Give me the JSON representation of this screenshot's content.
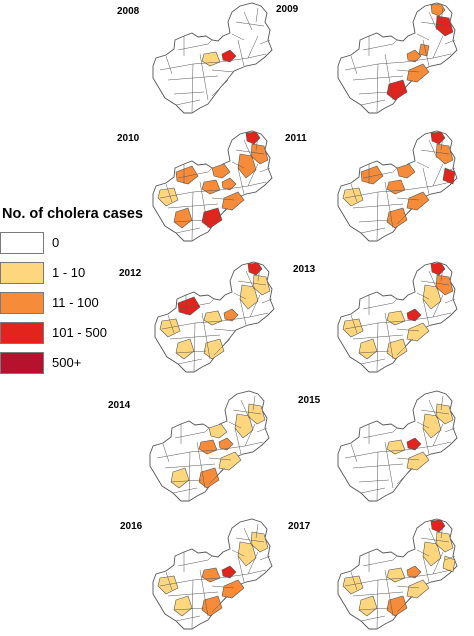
{
  "colors": {
    "c0": "#ffffff",
    "c1": "#fdd67e",
    "c2": "#f68c3a",
    "c3": "#e3241d",
    "c4": "#b6122e",
    "outline": "#555555"
  },
  "legend": {
    "title": "No. of cholera cases",
    "items": [
      {
        "label": "0",
        "color_key": "c0"
      },
      {
        "label": "1 - 10",
        "color_key": "c1"
      },
      {
        "label": "11 - 100",
        "color_key": "c2"
      },
      {
        "label": "101 - 500",
        "color_key": "c3"
      },
      {
        "label": "500+",
        "color_key": "c4"
      }
    ]
  },
  "maps": [
    {
      "year": "2008",
      "districts": [
        {
          "id": "lusaka",
          "level": "c3"
        },
        {
          "id": "central-w",
          "level": "c1"
        }
      ]
    },
    {
      "year": "2009",
      "districts": [
        {
          "id": "north-tip",
          "level": "c2"
        },
        {
          "id": "north-east",
          "level": "c3"
        },
        {
          "id": "lusaka",
          "level": "c2"
        },
        {
          "id": "luapula-s",
          "level": "c2"
        },
        {
          "id": "south-corridor",
          "level": "c2"
        },
        {
          "id": "southern",
          "level": "c3"
        }
      ]
    },
    {
      "year": "2010",
      "districts": [
        {
          "id": "north-tip",
          "level": "c3"
        },
        {
          "id": "north-east",
          "level": "c2"
        },
        {
          "id": "muchinga",
          "level": "c2"
        },
        {
          "id": "copperbelt",
          "level": "c2"
        },
        {
          "id": "central-w",
          "level": "c2"
        },
        {
          "id": "west",
          "level": "c1"
        },
        {
          "id": "north-west",
          "level": "c2"
        },
        {
          "id": "southern",
          "level": "c3"
        },
        {
          "id": "south-corridor",
          "level": "c2"
        },
        {
          "id": "lusaka",
          "level": "c2"
        },
        {
          "id": "south-west",
          "level": "c2"
        }
      ]
    },
    {
      "year": "2011",
      "districts": [
        {
          "id": "north-tip",
          "level": "c3"
        },
        {
          "id": "north-east",
          "level": "c2"
        },
        {
          "id": "east-strip",
          "level": "c3"
        },
        {
          "id": "copperbelt",
          "level": "c2"
        },
        {
          "id": "central-w",
          "level": "c2"
        },
        {
          "id": "north-west",
          "level": "c2"
        },
        {
          "id": "south-corridor",
          "level": "c2"
        },
        {
          "id": "west",
          "level": "c1"
        },
        {
          "id": "southern",
          "level": "c2"
        }
      ]
    },
    {
      "year": "2012",
      "districts": [
        {
          "id": "north-tip",
          "level": "c3"
        },
        {
          "id": "north-east",
          "level": "c1"
        },
        {
          "id": "north-west",
          "level": "c3"
        },
        {
          "id": "central-w",
          "level": "c1"
        },
        {
          "id": "lusaka",
          "level": "c2"
        },
        {
          "id": "west",
          "level": "c1"
        },
        {
          "id": "south-west",
          "level": "c1"
        },
        {
          "id": "southern",
          "level": "c1"
        },
        {
          "id": "muchinga",
          "level": "c1"
        }
      ]
    },
    {
      "year": "2013",
      "districts": [
        {
          "id": "north-tip",
          "level": "c3"
        },
        {
          "id": "north-east",
          "level": "c2"
        },
        {
          "id": "muchinga",
          "level": "c1"
        },
        {
          "id": "central-w",
          "level": "c1"
        },
        {
          "id": "lusaka",
          "level": "c3"
        },
        {
          "id": "west",
          "level": "c1"
        },
        {
          "id": "south-corridor",
          "level": "c1"
        },
        {
          "id": "southern",
          "level": "c1"
        },
        {
          "id": "south-west",
          "level": "c1"
        }
      ]
    },
    {
      "year": "2014",
      "districts": [
        {
          "id": "north-east",
          "level": "c1"
        },
        {
          "id": "central-w",
          "level": "c2"
        },
        {
          "id": "copperbelt",
          "level": "c1"
        },
        {
          "id": "muchinga",
          "level": "c1"
        },
        {
          "id": "southern",
          "level": "c2"
        },
        {
          "id": "south-west",
          "level": "c1"
        },
        {
          "id": "south-corridor",
          "level": "c1"
        },
        {
          "id": "lusaka",
          "level": "c2"
        }
      ]
    },
    {
      "year": "2015",
      "districts": [
        {
          "id": "north-east",
          "level": "c1"
        },
        {
          "id": "lusaka",
          "level": "c3"
        },
        {
          "id": "central-w",
          "level": "c1"
        },
        {
          "id": "south-corridor",
          "level": "c1"
        },
        {
          "id": "muchinga",
          "level": "c1"
        }
      ]
    },
    {
      "year": "2016",
      "districts": [
        {
          "id": "lusaka",
          "level": "c3"
        },
        {
          "id": "central-w",
          "level": "c2"
        },
        {
          "id": "north-east",
          "level": "c1"
        },
        {
          "id": "muchinga",
          "level": "c1"
        },
        {
          "id": "west",
          "level": "c1"
        },
        {
          "id": "south-corridor",
          "level": "c2"
        },
        {
          "id": "southern",
          "level": "c2"
        },
        {
          "id": "south-west",
          "level": "c1"
        }
      ]
    },
    {
      "year": "2017",
      "districts": [
        {
          "id": "north-tip",
          "level": "c3"
        },
        {
          "id": "north-east",
          "level": "c1"
        },
        {
          "id": "east-strip",
          "level": "c1"
        },
        {
          "id": "muchinga",
          "level": "c1"
        },
        {
          "id": "central-w",
          "level": "c1"
        },
        {
          "id": "lusaka",
          "level": "c2"
        },
        {
          "id": "south-corridor",
          "level": "c1"
        },
        {
          "id": "southern",
          "level": "c2"
        },
        {
          "id": "south-west",
          "level": "c1"
        },
        {
          "id": "west",
          "level": "c1"
        }
      ]
    }
  ]
}
